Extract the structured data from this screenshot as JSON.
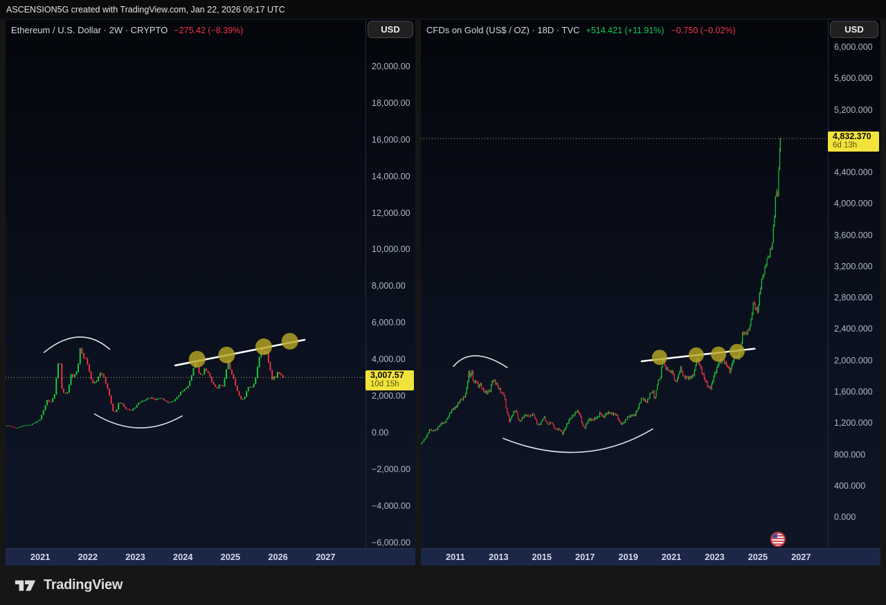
{
  "page": {
    "attribution": "ASCENSION5G created with TradingView.com, Jan 22, 2026 09:17 UTC",
    "footer_brand": "TradingView"
  },
  "colors": {
    "up": "#1dd13c",
    "down": "#f23645",
    "annotation_white": "#ffffff",
    "circle_marker": "#b6a623",
    "price_line": "rgba(240,230,150,0.75)",
    "tag_yellow": "#f2e33c"
  },
  "chart_data": [
    {
      "type": "candlestick",
      "title": "Ethereum / U.S. Dollar · 2W · CRYPTO",
      "change_segments": [
        {
          "text": "−275.42 (−8.39%)",
          "color": "#f23645"
        }
      ],
      "currency_button": "USD",
      "interval_years": 0.03846,
      "xlim": [
        2020.27,
        2027.84
      ],
      "ylim": [
        -6352,
        22570
      ],
      "x_ticks": [
        2021,
        2022,
        2023,
        2024,
        2025,
        2026,
        2027
      ],
      "y_ticks": [
        {
          "v": 20000,
          "label": "20,000.00"
        },
        {
          "v": 18000,
          "label": "18,000.00"
        },
        {
          "v": 16000,
          "label": "16,000.00"
        },
        {
          "v": 14000,
          "label": "14,000.00"
        },
        {
          "v": 12000,
          "label": "12,000.00"
        },
        {
          "v": 10000,
          "label": "10,000.00"
        },
        {
          "v": 8000,
          "label": "8,000.00"
        },
        {
          "v": 6000,
          "label": "6,000.00"
        },
        {
          "v": 4000,
          "label": "4,000.00"
        },
        {
          "v": 2000,
          "label": "2,000.00"
        },
        {
          "v": 0,
          "label": "0.00"
        },
        {
          "v": -2000,
          "label": "−2,000.00"
        },
        {
          "v": -4000,
          "label": "−4,000.00"
        },
        {
          "v": -6000,
          "label": "−6,000.00"
        }
      ],
      "price_line": {
        "value": 3007.57,
        "label": "3,007.57",
        "countdown": "10d 15h"
      },
      "volatility": {
        "amp": 0.022,
        "wick": 0.014
      },
      "series_keypoints": [
        [
          2020.3,
          390
        ],
        [
          2020.5,
          240
        ],
        [
          2020.65,
          390
        ],
        [
          2020.8,
          430
        ],
        [
          2020.92,
          600
        ],
        [
          2021.0,
          730
        ],
        [
          2021.08,
          1300
        ],
        [
          2021.15,
          1800
        ],
        [
          2021.22,
          1650
        ],
        [
          2021.3,
          2100
        ],
        [
          2021.36,
          3400
        ],
        [
          2021.4,
          4300
        ],
        [
          2021.45,
          2400
        ],
        [
          2021.52,
          2100
        ],
        [
          2021.58,
          2250
        ],
        [
          2021.65,
          3200
        ],
        [
          2021.7,
          3000
        ],
        [
          2021.78,
          3400
        ],
        [
          2021.85,
          4800
        ],
        [
          2021.9,
          4100
        ],
        [
          2021.95,
          4050
        ],
        [
          2022.0,
          3700
        ],
        [
          2022.05,
          3000
        ],
        [
          2022.12,
          2650
        ],
        [
          2022.2,
          2950
        ],
        [
          2022.28,
          3350
        ],
        [
          2022.35,
          2900
        ],
        [
          2022.42,
          2350
        ],
        [
          2022.48,
          1750
        ],
        [
          2022.54,
          1070
        ],
        [
          2022.6,
          1230
        ],
        [
          2022.66,
          1700
        ],
        [
          2022.72,
          1550
        ],
        [
          2022.78,
          1330
        ],
        [
          2022.85,
          1280
        ],
        [
          2022.92,
          1220
        ],
        [
          2023.0,
          1400
        ],
        [
          2023.08,
          1650
        ],
        [
          2023.16,
          1750
        ],
        [
          2023.25,
          1870
        ],
        [
          2023.33,
          1900
        ],
        [
          2023.42,
          1780
        ],
        [
          2023.5,
          1920
        ],
        [
          2023.58,
          1840
        ],
        [
          2023.67,
          1630
        ],
        [
          2023.75,
          1650
        ],
        [
          2023.83,
          1800
        ],
        [
          2023.92,
          2080
        ],
        [
          2024.0,
          2300
        ],
        [
          2024.08,
          2420
        ],
        [
          2024.16,
          2900
        ],
        [
          2024.22,
          3550
        ],
        [
          2024.28,
          3900
        ],
        [
          2024.33,
          3200
        ],
        [
          2024.4,
          3100
        ],
        [
          2024.46,
          3500
        ],
        [
          2024.52,
          3350
        ],
        [
          2024.58,
          2950
        ],
        [
          2024.65,
          2550
        ],
        [
          2024.72,
          2400
        ],
        [
          2024.78,
          2650
        ],
        [
          2024.85,
          2500
        ],
        [
          2024.9,
          3350
        ],
        [
          2024.95,
          3900
        ],
        [
          2025.0,
          3350
        ],
        [
          2025.05,
          3050
        ],
        [
          2025.1,
          2650
        ],
        [
          2025.16,
          2150
        ],
        [
          2025.22,
          1850
        ],
        [
          2025.28,
          1800
        ],
        [
          2025.33,
          2200
        ],
        [
          2025.4,
          2550
        ],
        [
          2025.46,
          2450
        ],
        [
          2025.52,
          2900
        ],
        [
          2025.58,
          3700
        ],
        [
          2025.62,
          4400
        ],
        [
          2025.66,
          4700
        ],
        [
          2025.7,
          4300
        ],
        [
          2025.75,
          4450
        ],
        [
          2025.8,
          3900
        ],
        [
          2025.85,
          3300
        ],
        [
          2025.88,
          2850
        ],
        [
          2025.92,
          3150
        ],
        [
          2025.96,
          2950
        ],
        [
          2026.0,
          3350
        ],
        [
          2026.06,
          3100
        ],
        [
          2026.12,
          3007.57
        ]
      ],
      "annotations": {
        "arcs": [
          {
            "from": [
              2021.08,
              4380
            ],
            "apex": [
              2021.8,
              5220
            ],
            "to": [
              2022.46,
              4560
            ]
          },
          {
            "from": [
              2022.14,
              1020
            ],
            "apex": [
              2023.07,
              260
            ],
            "to": [
              2023.98,
              910
            ]
          }
        ],
        "trendline": {
          "from": [
            2023.84,
            3670
          ],
          "to": [
            2026.56,
            5070
          ]
        },
        "circles": [
          [
            2024.3,
            4010
          ],
          [
            2024.92,
            4240
          ],
          [
            2025.7,
            4690
          ],
          [
            2026.25,
            4990
          ]
        ],
        "circle_radius_px": 12
      }
    },
    {
      "type": "candlestick",
      "title": "CFDs on Gold (US$ / OZ) · 18D · TVC",
      "change_segments": [
        {
          "text": "+514.421 (+11.91%)",
          "color": "#18c95c"
        },
        {
          "text": "−0.750 (−0.02%)",
          "color": "#f23645"
        }
      ],
      "currency_button": "USD",
      "interval_years": 0.0493,
      "xlim": [
        2009.4,
        2028.24
      ],
      "ylim": [
        -406,
        6354
      ],
      "x_ticks": [
        2011,
        2013,
        2015,
        2017,
        2019,
        2021,
        2023,
        2025,
        2027
      ],
      "y_ticks": [
        {
          "v": 6000,
          "label": "6,000.000"
        },
        {
          "v": 5600,
          "label": "5,600.000"
        },
        {
          "v": 5200,
          "label": "5,200.000"
        },
        {
          "v": 4400,
          "label": "4,400.000"
        },
        {
          "v": 4000,
          "label": "4,000.000"
        },
        {
          "v": 3600,
          "label": "3,600.000"
        },
        {
          "v": 3200,
          "label": "3,200.000"
        },
        {
          "v": 2800,
          "label": "2,800.000"
        },
        {
          "v": 2400,
          "label": "2,400.000"
        },
        {
          "v": 2000,
          "label": "2,000.000"
        },
        {
          "v": 1600,
          "label": "1,600.000"
        },
        {
          "v": 1200,
          "label": "1,200.000"
        },
        {
          "v": 800,
          "label": "800.000"
        },
        {
          "v": 400,
          "label": "400.000"
        },
        {
          "v": 0,
          "label": "0.000"
        }
      ],
      "price_line": {
        "value": 4832.37,
        "label": "4,832.370",
        "countdown": "6d 13h"
      },
      "volatility": {
        "amp": 0.016,
        "wick": 0.01
      },
      "series_keypoints": [
        [
          2009.4,
          930
        ],
        [
          2009.6,
          1000
        ],
        [
          2009.8,
          1120
        ],
        [
          2009.95,
          1090
        ],
        [
          2010.1,
          1120
        ],
        [
          2010.3,
          1180
        ],
        [
          2010.5,
          1210
        ],
        [
          2010.7,
          1300
        ],
        [
          2010.9,
          1390
        ],
        [
          2011.05,
          1420
        ],
        [
          2011.2,
          1480
        ],
        [
          2011.35,
          1520
        ],
        [
          2011.5,
          1600
        ],
        [
          2011.62,
          1840
        ],
        [
          2011.68,
          1780
        ],
        [
          2011.75,
          1880
        ],
        [
          2011.85,
          1720
        ],
        [
          2011.95,
          1750
        ],
        [
          2012.05,
          1660
        ],
        [
          2012.15,
          1700
        ],
        [
          2012.3,
          1620
        ],
        [
          2012.45,
          1580
        ],
        [
          2012.6,
          1620
        ],
        [
          2012.72,
          1770
        ],
        [
          2012.85,
          1710
        ],
        [
          2012.95,
          1670
        ],
        [
          2013.1,
          1610
        ],
        [
          2013.25,
          1560
        ],
        [
          2013.35,
          1380
        ],
        [
          2013.5,
          1230
        ],
        [
          2013.65,
          1320
        ],
        [
          2013.8,
          1360
        ],
        [
          2013.95,
          1220
        ],
        [
          2014.1,
          1260
        ],
        [
          2014.25,
          1300
        ],
        [
          2014.45,
          1290
        ],
        [
          2014.6,
          1310
        ],
        [
          2014.8,
          1180
        ],
        [
          2014.95,
          1190
        ],
        [
          2015.1,
          1280
        ],
        [
          2015.25,
          1190
        ],
        [
          2015.45,
          1200
        ],
        [
          2015.6,
          1130
        ],
        [
          2015.8,
          1120
        ],
        [
          2015.95,
          1060
        ],
        [
          2016.1,
          1160
        ],
        [
          2016.3,
          1250
        ],
        [
          2016.5,
          1320
        ],
        [
          2016.6,
          1360
        ],
        [
          2016.75,
          1310
        ],
        [
          2016.9,
          1170
        ],
        [
          2017.0,
          1150
        ],
        [
          2017.15,
          1240
        ],
        [
          2017.3,
          1250
        ],
        [
          2017.45,
          1260
        ],
        [
          2017.6,
          1270
        ],
        [
          2017.7,
          1340
        ],
        [
          2017.85,
          1280
        ],
        [
          2018.0,
          1320
        ],
        [
          2018.15,
          1340
        ],
        [
          2018.3,
          1320
        ],
        [
          2018.45,
          1300
        ],
        [
          2018.6,
          1220
        ],
        [
          2018.72,
          1190
        ],
        [
          2018.85,
          1220
        ],
        [
          2019.0,
          1290
        ],
        [
          2019.15,
          1300
        ],
        [
          2019.3,
          1290
        ],
        [
          2019.45,
          1400
        ],
        [
          2019.6,
          1510
        ],
        [
          2019.72,
          1490
        ],
        [
          2019.85,
          1470
        ],
        [
          2020.0,
          1570
        ],
        [
          2020.15,
          1590
        ],
        [
          2020.22,
          1480
        ],
        [
          2020.35,
          1720
        ],
        [
          2020.5,
          1780
        ],
        [
          2020.6,
          2030
        ],
        [
          2020.7,
          1920
        ],
        [
          2020.8,
          1900
        ],
        [
          2020.92,
          1840
        ],
        [
          2021.05,
          1850
        ],
        [
          2021.18,
          1730
        ],
        [
          2021.3,
          1780
        ],
        [
          2021.42,
          1900
        ],
        [
          2021.55,
          1800
        ],
        [
          2021.68,
          1790
        ],
        [
          2021.8,
          1760
        ],
        [
          2021.92,
          1790
        ],
        [
          2022.05,
          1850
        ],
        [
          2022.18,
          2030
        ],
        [
          2022.3,
          1940
        ],
        [
          2022.45,
          1840
        ],
        [
          2022.58,
          1730
        ],
        [
          2022.7,
          1650
        ],
        [
          2022.82,
          1660
        ],
        [
          2022.95,
          1800
        ],
        [
          2023.08,
          1870
        ],
        [
          2023.2,
          1990
        ],
        [
          2023.35,
          2020
        ],
        [
          2023.48,
          1960
        ],
        [
          2023.6,
          1920
        ],
        [
          2023.72,
          1870
        ],
        [
          2023.82,
          1985
        ],
        [
          2023.95,
          2040
        ],
        [
          2024.08,
          2040
        ],
        [
          2024.2,
          2160
        ],
        [
          2024.3,
          2350
        ],
        [
          2024.42,
          2330
        ],
        [
          2024.55,
          2390
        ],
        [
          2024.68,
          2500
        ],
        [
          2024.8,
          2740
        ],
        [
          2024.9,
          2650
        ],
        [
          2025.0,
          2650
        ],
        [
          2025.1,
          2900
        ],
        [
          2025.22,
          3050
        ],
        [
          2025.3,
          3120
        ],
        [
          2025.4,
          3300
        ],
        [
          2025.5,
          3330
        ],
        [
          2025.58,
          3380
        ],
        [
          2025.66,
          3450
        ],
        [
          2025.74,
          3760
        ],
        [
          2025.8,
          4000
        ],
        [
          2025.85,
          4250
        ],
        [
          2025.9,
          4050
        ],
        [
          2025.95,
          4300
        ],
        [
          2026.0,
          4600
        ],
        [
          2026.04,
          4832.37
        ]
      ],
      "annotations": {
        "arcs": [
          {
            "from": [
              2010.91,
              1925
            ],
            "apex": [
              2011.96,
              2060
            ],
            "to": [
              2013.4,
              1910
            ]
          },
          {
            "from": [
              2013.21,
              1005
            ],
            "apex": [
              2016.8,
              830
            ],
            "to": [
              2020.13,
              1125
            ]
          }
        ],
        "trendline": {
          "from": [
            2019.62,
            1990
          ],
          "to": [
            2024.85,
            2150
          ]
        },
        "circles": [
          [
            2020.45,
            2040
          ],
          [
            2022.15,
            2070
          ],
          [
            2023.18,
            2080
          ],
          [
            2024.04,
            2115
          ]
        ],
        "circle_radius_px": 11,
        "flag_marker": {
          "t": 2025.93,
          "p": -283
        }
      }
    }
  ]
}
